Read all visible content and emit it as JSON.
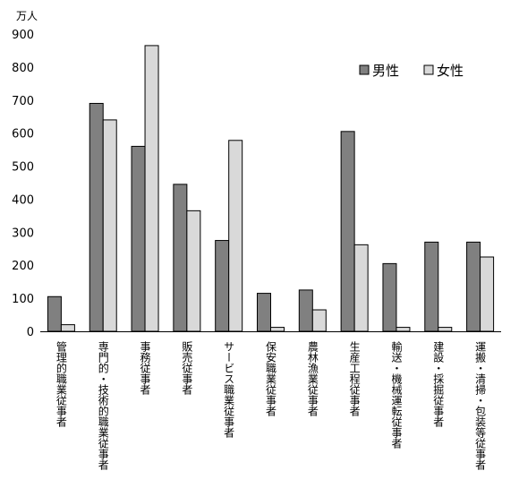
{
  "chart_data": {
    "type": "bar",
    "unit_label": "万人",
    "categories": [
      "管理的職業従事者",
      "専門的・技術的職業従事者",
      "事務従事者",
      "販売従事者",
      "サービス職業従事者",
      "保安職業従事者",
      "農林漁業従事者",
      "生産工程従事者",
      "輸送・機械運転従事者",
      "建設・採掘従事者",
      "運搬・清掃・包装等従事者"
    ],
    "series": [
      {
        "name": "男性",
        "color": "#808080",
        "values": [
          105,
          690,
          560,
          445,
          275,
          115,
          125,
          605,
          205,
          270,
          270
        ]
      },
      {
        "name": "女性",
        "color": "#d9d9d9",
        "values": [
          20,
          640,
          865,
          365,
          578,
          12,
          65,
          262,
          12,
          12,
          225
        ]
      }
    ],
    "ylim": [
      0,
      900
    ],
    "yticks": [
      0,
      100,
      200,
      300,
      400,
      500,
      600,
      700,
      800,
      900
    ],
    "legend_position": "top-right",
    "grid": false
  }
}
